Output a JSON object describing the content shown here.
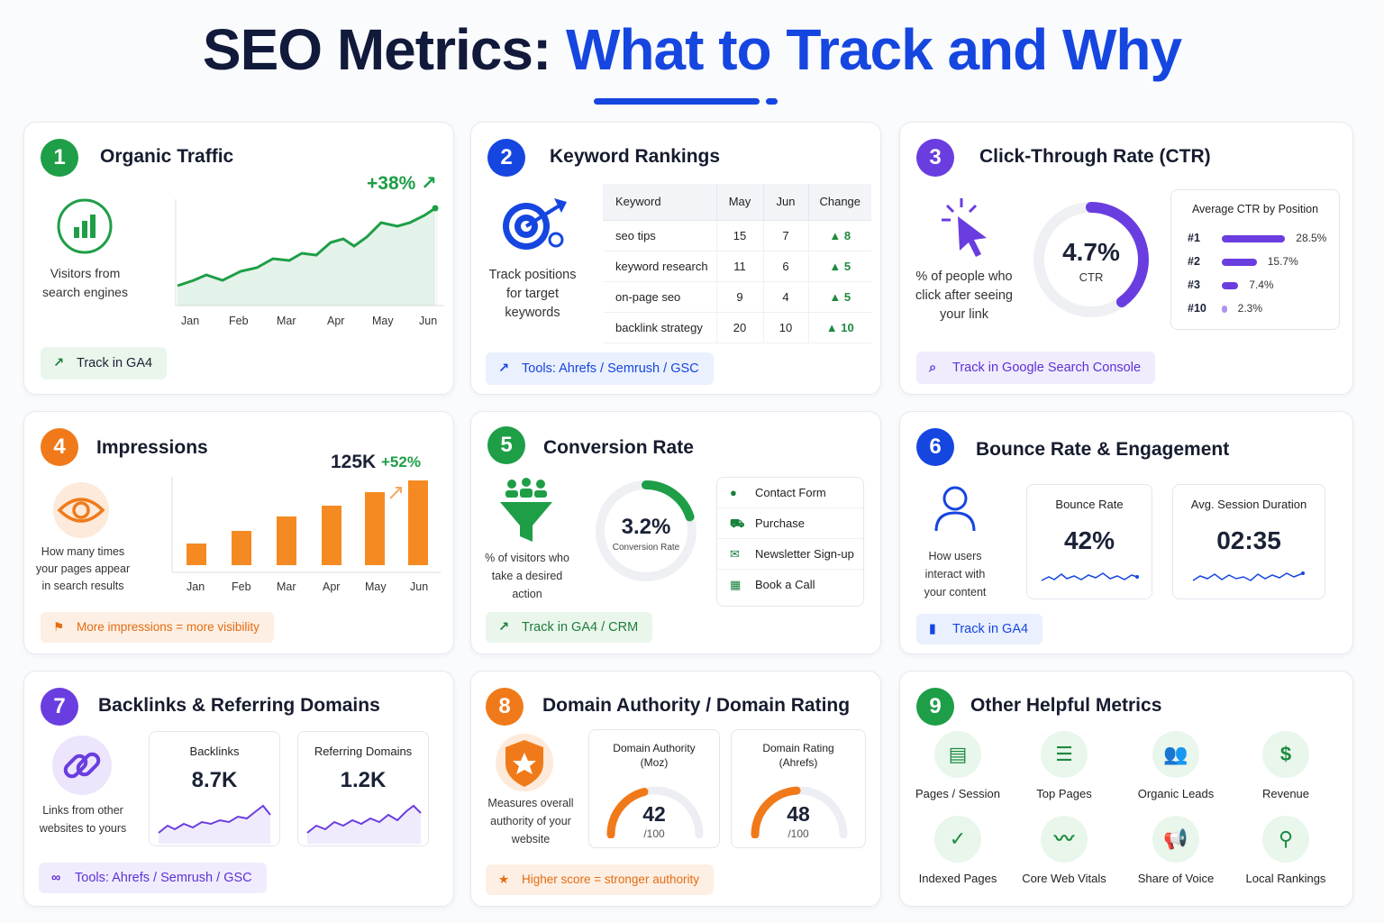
{
  "title": {
    "part1": "SEO Metrics: ",
    "part2": "What to Track and Why"
  },
  "colors": {
    "blue": "#1646e0",
    "green": "#1e9e47",
    "purple": "#6a3de0",
    "orange": "#f07a1a",
    "navy": "#111a3a"
  },
  "cards": {
    "organic": {
      "num": "1",
      "title": "Organic Traffic",
      "desc1": "Visitors from",
      "desc2": "search engines",
      "growth": "+38% ↗",
      "months": [
        "Jan",
        "Feb",
        "Mar",
        "Apr",
        "May",
        "Jun"
      ],
      "pill": "Track in GA4"
    },
    "keywords": {
      "num": "2",
      "title": "Keyword Rankings",
      "desc1": "Track positions",
      "desc2": "for target",
      "desc3": "keywords",
      "headers": [
        "Keyword",
        "May",
        "Jun",
        "Change"
      ],
      "rows": [
        {
          "k": "seo tips",
          "may": "15",
          "jun": "7",
          "chg": "▲ 8"
        },
        {
          "k": "keyword research",
          "may": "11",
          "jun": "6",
          "chg": "▲ 5"
        },
        {
          "k": "on-page seo",
          "may": "9",
          "jun": "4",
          "chg": "▲ 5"
        },
        {
          "k": "backlink strategy",
          "may": "20",
          "jun": "10",
          "chg": "▲ 10"
        }
      ],
      "pill": "Tools: Ahrefs / Semrush / GSC"
    },
    "ctr": {
      "num": "3",
      "title": "Click-Through Rate (CTR)",
      "desc1": "% of people who",
      "desc2": "click after seeing",
      "desc3": "your link",
      "value": "4.7%",
      "value_label": "CTR",
      "value_fraction": 0.4,
      "box_title": "Average CTR by Position",
      "positions": [
        {
          "pos": "#1",
          "pct": "28.5%",
          "v": 28.5
        },
        {
          "pos": "#2",
          "pct": "15.7%",
          "v": 15.7
        },
        {
          "pos": "#3",
          "pct": "7.4%",
          "v": 7.4
        },
        {
          "pos": "#10",
          "pct": "2.3%",
          "v": 2.3
        }
      ],
      "pill": "Track in Google Search Console"
    },
    "impressions": {
      "num": "4",
      "title": "Impressions",
      "total": "125K",
      "growth": "+52%",
      "desc1": "How many times",
      "desc2": "your pages appear",
      "desc3": "in search results",
      "months": [
        "Jan",
        "Feb",
        "Mar",
        "Apr",
        "May",
        "Jun"
      ],
      "pill": "More impressions = more visibility"
    },
    "conversion": {
      "num": "5",
      "title": "Conversion Rate",
      "value": "3.2%",
      "value_label": "Conversion Rate",
      "value_fraction": 0.2,
      "desc1": "% of visitors who",
      "desc2": "take a desired",
      "desc3": "action",
      "items": [
        "Contact Form",
        "Purchase",
        "Newsletter Sign-up",
        "Book a Call"
      ],
      "pill": "Track in GA4 / CRM"
    },
    "bounce": {
      "num": "6",
      "title": "Bounce Rate & Engagement",
      "desc1": "How users",
      "desc2": "interact with",
      "desc3": "your content",
      "m1_label": "Bounce Rate",
      "m1_value": "42%",
      "m2_label": "Avg. Session Duration",
      "m2_value": "02:35",
      "pill": "Track in GA4"
    },
    "backlinks": {
      "num": "7",
      "title": "Backlinks & Referring Domains",
      "desc1": "Links from other",
      "desc2": "websites to yours",
      "m1_label": "Backlinks",
      "m1_value": "8.7K",
      "m2_label": "Referring Domains",
      "m2_value": "1.2K",
      "pill": "Tools: Ahrefs / Semrush / GSC"
    },
    "authority": {
      "num": "8",
      "title": "Domain Authority / Domain Rating",
      "desc1": "Measures overall",
      "desc2": "authority of your",
      "desc3": "website",
      "m1_label1": "Domain Authority",
      "m1_label2": "(Moz)",
      "m1_value": "42",
      "m1_den": "/100",
      "m2_label1": "Domain Rating",
      "m2_label2": "(Ahrefs)",
      "m2_value": "48",
      "m2_den": "/100",
      "pill": "Higher score = stronger authority"
    },
    "other": {
      "num": "9",
      "title": "Other Helpful Metrics",
      "items": [
        "Pages / Session",
        "Top Pages",
        "Organic Leads",
        "Revenue",
        "Indexed Pages",
        "Core Web Vitals",
        "Share of Voice",
        "Local Rankings"
      ],
      "icons": [
        "document-icon",
        "list-icon",
        "people-icon",
        "dollar-icon",
        "check-icon",
        "pulse-icon",
        "megaphone-icon",
        "pin-icon"
      ]
    }
  }
}
